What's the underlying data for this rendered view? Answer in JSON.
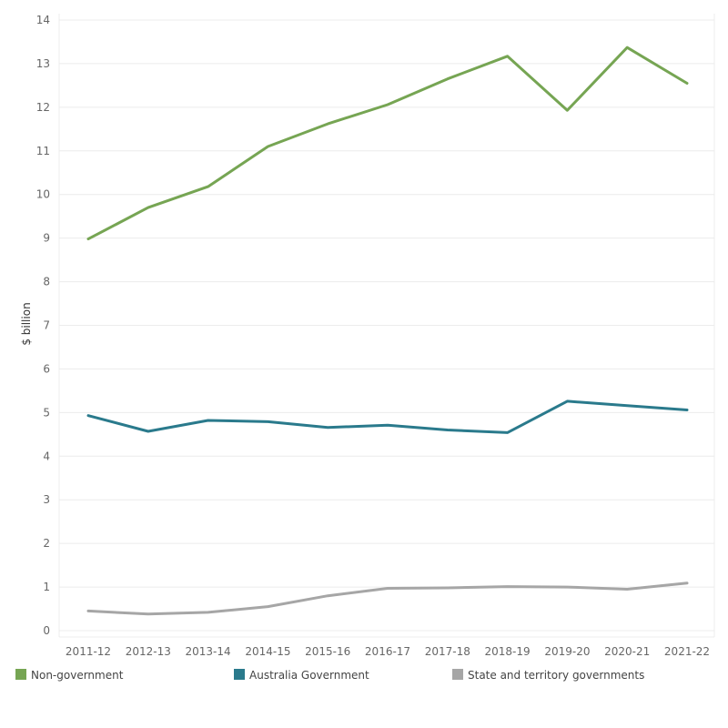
{
  "chart_data": {
    "type": "line",
    "title": "",
    "xlabel": "",
    "ylabel": "$ billion",
    "ylim": [
      0,
      14
    ],
    "yticks": [
      0,
      1,
      2,
      3,
      4,
      5,
      6,
      7,
      8,
      9,
      10,
      11,
      12,
      13,
      14
    ],
    "categories": [
      "2011-12",
      "2012-13",
      "2013-14",
      "2014-15",
      "2015-16",
      "2016-17",
      "2017-18",
      "2018-19",
      "2019-20",
      "2020-21",
      "2021-22"
    ],
    "grid": true,
    "legend_position": "bottom",
    "series": [
      {
        "name": "Non-government",
        "color": "#76a553",
        "values": [
          8.98,
          9.7,
          10.18,
          11.1,
          11.62,
          12.06,
          12.65,
          13.17,
          11.93,
          13.37,
          12.55
        ]
      },
      {
        "name": "Australia Government",
        "color": "#2a7a8c",
        "values": [
          4.93,
          4.57,
          4.82,
          4.79,
          4.66,
          4.71,
          4.6,
          4.54,
          5.26,
          5.16,
          5.06
        ]
      },
      {
        "name": "State and territory governments",
        "color": "#a6a6a6",
        "values": [
          0.45,
          0.38,
          0.42,
          0.55,
          0.8,
          0.97,
          0.98,
          1.01,
          1.0,
          0.95,
          1.09
        ]
      }
    ]
  }
}
